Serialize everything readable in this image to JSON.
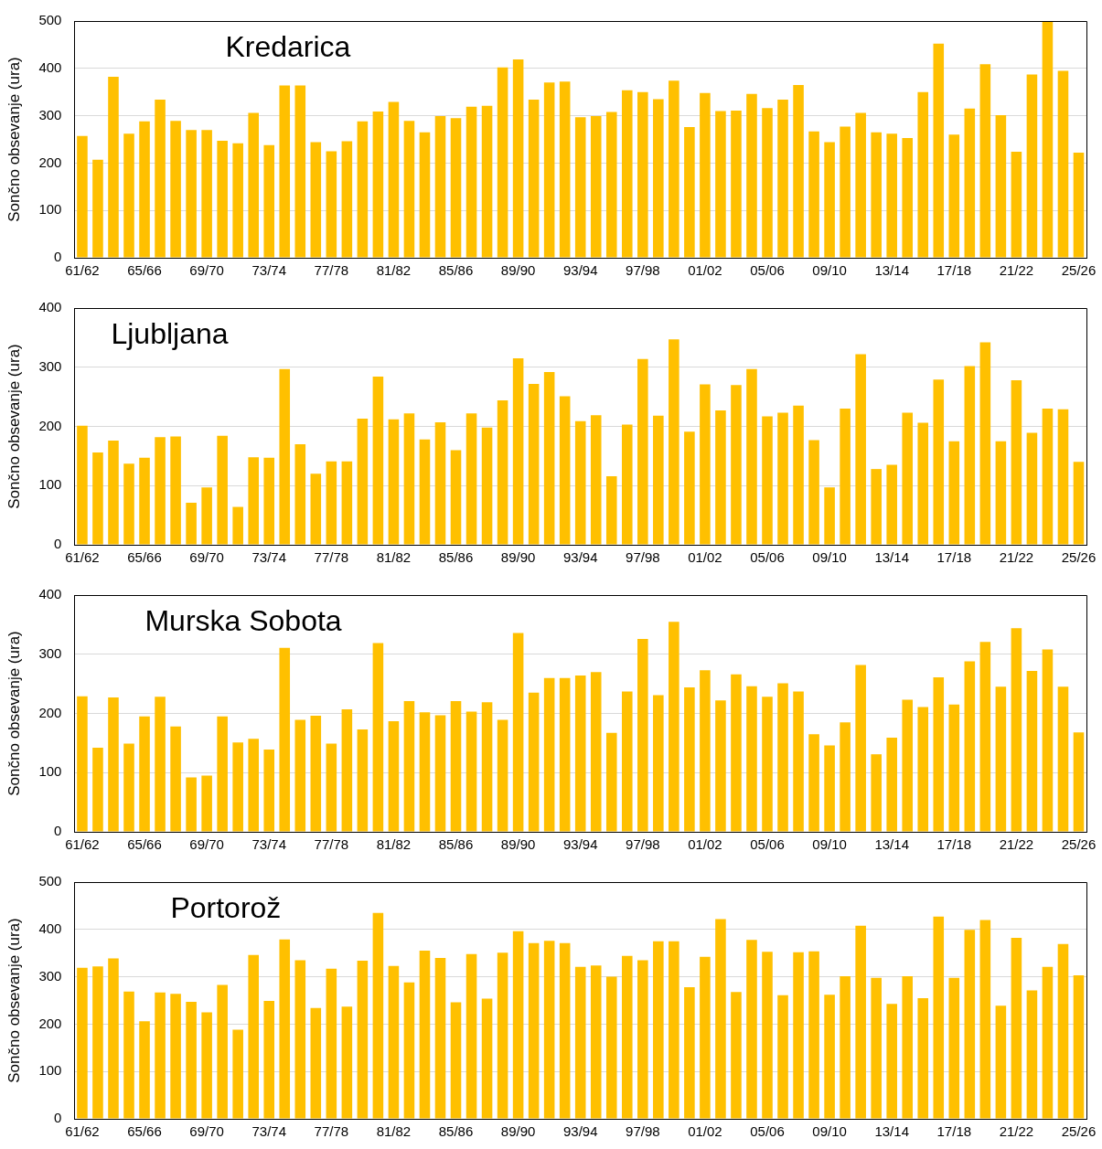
{
  "chart_data": [
    {
      "type": "bar",
      "title": "Kredarica",
      "ylabel": "Sončno obsevanje (ura)",
      "color": "#ffc000",
      "grid": "y",
      "legend": false,
      "ylim": [
        0,
        500
      ],
      "yticks": [
        0,
        100,
        200,
        300,
        400,
        500
      ],
      "categories": [
        "61/62",
        null,
        null,
        null,
        "65/66",
        null,
        null,
        null,
        "69/70",
        null,
        null,
        null,
        "73/74",
        null,
        null,
        null,
        "77/78",
        null,
        null,
        null,
        "81/82",
        null,
        null,
        null,
        "85/86",
        null,
        null,
        null,
        "89/90",
        null,
        null,
        null,
        "93/94",
        null,
        null,
        null,
        "97/98",
        null,
        null,
        null,
        "01/02",
        null,
        null,
        null,
        "05/06",
        null,
        null,
        null,
        "09/10",
        null,
        null,
        null,
        "13/14",
        null,
        null,
        null,
        "17/18",
        null,
        null,
        null,
        "21/22",
        null,
        null,
        null,
        "25/26"
      ],
      "values": [
        257,
        207,
        382,
        262,
        288,
        334,
        289,
        270,
        270,
        247,
        242,
        306,
        238,
        364,
        364,
        244,
        225,
        246,
        288,
        309,
        329,
        289,
        265,
        299,
        295,
        319,
        321,
        402,
        419,
        334,
        370,
        372,
        297,
        299,
        308,
        354,
        350,
        335,
        374,
        276,
        348,
        310,
        311,
        346,
        316,
        334,
        365,
        267,
        244,
        277,
        306,
        265,
        262,
        253,
        350,
        452,
        260,
        315,
        409,
        301,
        224,
        387,
        500,
        395,
        222
      ]
    },
    {
      "type": "bar",
      "title": "Ljubljana",
      "ylabel": "Sončno obsevanje (ura)",
      "color": "#ffc000",
      "grid": "y",
      "legend": false,
      "ylim": [
        0,
        400
      ],
      "yticks": [
        0,
        100,
        200,
        300,
        400
      ],
      "categories": [
        "61/62",
        null,
        null,
        null,
        "65/66",
        null,
        null,
        null,
        "69/70",
        null,
        null,
        null,
        "73/74",
        null,
        null,
        null,
        "77/78",
        null,
        null,
        null,
        "81/82",
        null,
        null,
        null,
        "85/86",
        null,
        null,
        null,
        "89/90",
        null,
        null,
        null,
        "93/94",
        null,
        null,
        null,
        "97/98",
        null,
        null,
        null,
        "01/02",
        null,
        null,
        null,
        "05/06",
        null,
        null,
        null,
        "09/10",
        null,
        null,
        null,
        "13/14",
        null,
        null,
        null,
        "17/18",
        null,
        null,
        null,
        "21/22",
        null,
        null,
        null,
        "25/26"
      ],
      "values": [
        201,
        156,
        176,
        137,
        147,
        182,
        183,
        71,
        97,
        184,
        64,
        148,
        147,
        297,
        170,
        120,
        141,
        141,
        213,
        284,
        212,
        222,
        178,
        207,
        160,
        222,
        198,
        244,
        315,
        272,
        292,
        251,
        209,
        219,
        116,
        203,
        314,
        218,
        347,
        191,
        271,
        227,
        270,
        297,
        217,
        223,
        235,
        177,
        97,
        230,
        322,
        128,
        135,
        223,
        206,
        279,
        175,
        302,
        342,
        175,
        278,
        189,
        230,
        229,
        140
      ]
    },
    {
      "type": "bar",
      "title": "Murska Sobota",
      "ylabel": "Sončno obsevanje (ura)",
      "color": "#ffc000",
      "grid": "y",
      "legend": false,
      "ylim": [
        0,
        400
      ],
      "yticks": [
        0,
        100,
        200,
        300,
        400
      ],
      "categories": [
        "61/62",
        null,
        null,
        null,
        "65/66",
        null,
        null,
        null,
        "69/70",
        null,
        null,
        null,
        "73/74",
        null,
        null,
        null,
        "77/78",
        null,
        null,
        null,
        "81/82",
        null,
        null,
        null,
        "85/86",
        null,
        null,
        null,
        "89/90",
        null,
        null,
        null,
        "93/94",
        null,
        null,
        null,
        "97/98",
        null,
        null,
        null,
        "01/02",
        null,
        null,
        null,
        "05/06",
        null,
        null,
        null,
        "09/10",
        null,
        null,
        null,
        "13/14",
        null,
        null,
        null,
        "17/18",
        null,
        null,
        null,
        "21/22",
        null,
        null,
        null,
        "25/26"
      ],
      "values": [
        229,
        142,
        227,
        149,
        195,
        228,
        178,
        92,
        95,
        195,
        151,
        157,
        139,
        311,
        189,
        196,
        149,
        207,
        173,
        319,
        187,
        221,
        202,
        197,
        221,
        203,
        219,
        189,
        336,
        235,
        260,
        260,
        264,
        270,
        167,
        237,
        326,
        231,
        355,
        244,
        273,
        222,
        266,
        246,
        228,
        251,
        237,
        165,
        146,
        185,
        282,
        131,
        159,
        223,
        211,
        261,
        215,
        288,
        321,
        245,
        344,
        272,
        308,
        245,
        168
      ]
    },
    {
      "type": "bar",
      "title": "Portorož",
      "ylabel": "Sončno obsevanje (ura)",
      "color": "#ffc000",
      "grid": "y",
      "legend": false,
      "ylim": [
        0,
        500
      ],
      "yticks": [
        0,
        100,
        200,
        300,
        400,
        500
      ],
      "categories": [
        "61/62",
        null,
        null,
        null,
        "65/66",
        null,
        null,
        null,
        "69/70",
        null,
        null,
        null,
        "73/74",
        null,
        null,
        null,
        "77/78",
        null,
        null,
        null,
        "81/82",
        null,
        null,
        null,
        "85/86",
        null,
        null,
        null,
        "89/90",
        null,
        null,
        null,
        "93/94",
        null,
        null,
        null,
        "97/98",
        null,
        null,
        null,
        "01/02",
        null,
        null,
        null,
        "05/06",
        null,
        null,
        null,
        "09/10",
        null,
        null,
        null,
        "13/14",
        null,
        null,
        null,
        "17/18",
        null,
        null,
        null,
        "21/22",
        null,
        null,
        null,
        "25/26"
      ],
      "values": [
        319,
        322,
        339,
        269,
        206,
        267,
        264,
        247,
        225,
        283,
        188,
        346,
        249,
        379,
        335,
        234,
        317,
        237,
        334,
        435,
        323,
        288,
        355,
        340,
        246,
        348,
        254,
        351,
        396,
        371,
        376,
        371,
        321,
        324,
        300,
        344,
        335,
        375,
        375,
        278,
        342,
        422,
        268,
        378,
        353,
        261,
        352,
        354,
        262,
        301,
        408,
        298,
        243,
        301,
        255,
        427,
        298,
        399,
        420,
        239,
        382,
        271,
        321,
        369,
        303
      ]
    }
  ]
}
